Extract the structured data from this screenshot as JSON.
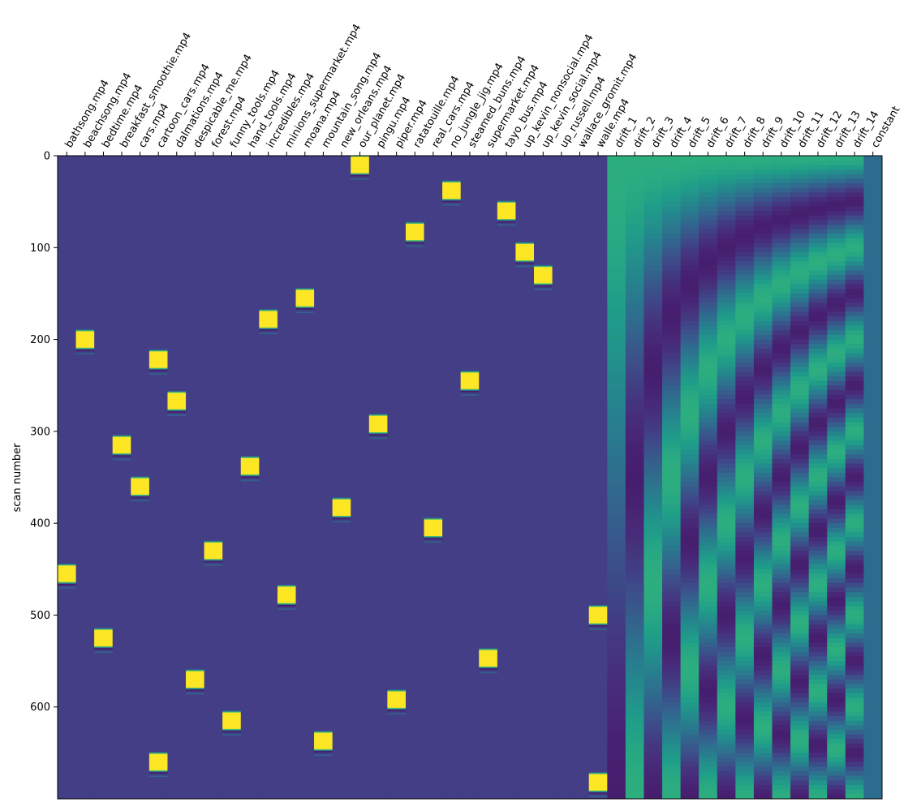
{
  "chart_data": {
    "type": "heatmap",
    "title": "",
    "xlabel": "",
    "ylabel": "scan number",
    "n_scans": 700,
    "ylim": [
      700,
      0
    ],
    "y_ticks": [
      0,
      100,
      200,
      300,
      400,
      500,
      600
    ],
    "columns": [
      "bathsong.mp4",
      "beachsong.mp4",
      "bedtime.mp4",
      "breakfast_smoothie.mp4",
      "cars.mp4",
      "cartoon_cars.mp4",
      "dalmations.mp4",
      "despicable_me.mp4",
      "forest.mp4",
      "funny_tools.mp4",
      "hand_tools.mp4",
      "incredibles.mp4",
      "minions_supermarket.mp4",
      "moana.mp4",
      "mountain_song.mp4",
      "new_orleans.mp4",
      "our_planet.mp4",
      "pingu.mp4",
      "piper.mp4",
      "ratatouille.mp4",
      "real_cars.mp4",
      "no_jungle_jig.mp4",
      "steamed_buns.mp4",
      "supermarket.mp4",
      "tayo_bus.mp4",
      "up_kevin_nonsocial.mp4",
      "up_kevin_social.mp4",
      "up_russell.mp4",
      "wallace_gromit.mp4",
      "walle.mp4",
      "drift_1",
      "drift_2",
      "drift_3",
      "drift_4",
      "drift_5",
      "drift_6",
      "drift_7",
      "drift_8",
      "drift_9",
      "drift_10",
      "drift_11",
      "drift_12",
      "drift_13",
      "drift_14",
      "constant"
    ],
    "event_onsets": [
      [
        445
      ],
      [
        190
      ],
      [
        515
      ],
      [
        305
      ],
      [
        350
      ],
      [
        212,
        650
      ],
      [
        257
      ],
      [
        560
      ],
      [
        420
      ],
      [
        605
      ],
      [
        328
      ],
      [
        168
      ],
      [
        468
      ],
      [
        145
      ],
      [
        627
      ],
      [
        373
      ],
      [
        0
      ],
      [
        282
      ],
      [
        582
      ],
      [
        73
      ],
      [
        395
      ],
      [
        28
      ],
      [
        235
      ],
      [
        537
      ],
      [
        50
      ],
      [
        95
      ],
      [
        120
      ],
      [],
      [],
      [
        672,
        490
      ]
    ],
    "event_duration_scans": 20,
    "drift_columns": 14,
    "colormap": "viridis",
    "colors": {
      "background_level": "#433e85",
      "constant": "#2c6c8e",
      "peak": "#fde725"
    }
  }
}
